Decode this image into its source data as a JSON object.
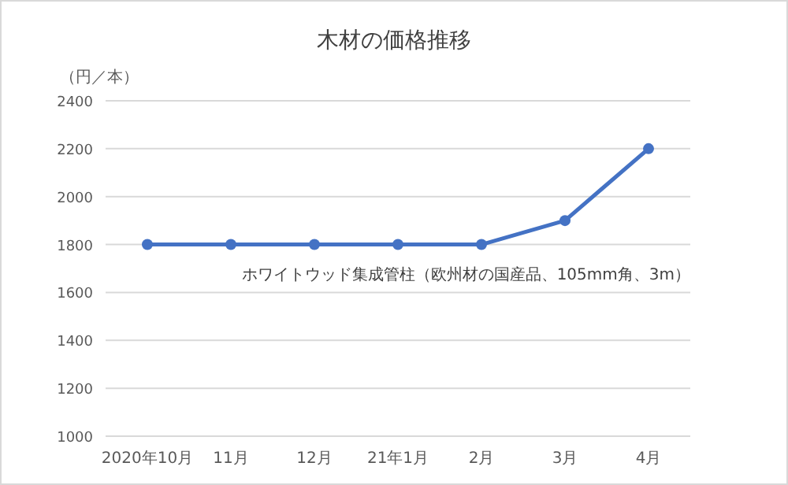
{
  "chart_data": {
    "type": "line",
    "title": "木材の価格推移",
    "ylabel": "（円／本）",
    "categories": [
      "2020年10月",
      "11月",
      "12月",
      "21年1月",
      "2月",
      "3月",
      "4月"
    ],
    "series": [
      {
        "name": "ホワイトウッド集成管柱（欧州材の国産品、105mm角、3m）",
        "color": "#4472c4",
        "values": [
          1800,
          1800,
          1800,
          1800,
          1800,
          1900,
          2200
        ]
      }
    ],
    "ylim": [
      1000,
      2400
    ],
    "yticks": [
      1000,
      1200,
      1400,
      1600,
      1800,
      2000,
      2200,
      2400
    ],
    "grid": "y",
    "marker": "circle",
    "line_style": "solid",
    "legend": false
  }
}
